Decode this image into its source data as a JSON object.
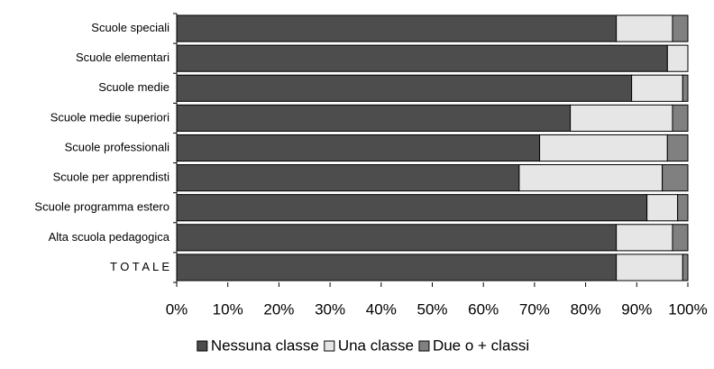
{
  "chart_data": {
    "type": "bar",
    "orientation": "horizontal",
    "stacked": true,
    "categories": [
      "Scuole speciali",
      "Scuole elementari",
      "Scuole medie",
      "Scuole medie superiori",
      "Scuole professionali",
      "Scuole per apprendisti",
      "Scuole programma estero",
      "Alta scuola pedagogica",
      "T O T A L E"
    ],
    "series": [
      {
        "name": "Nessuna classe",
        "color": "#4d4d4d",
        "values": [
          86,
          96,
          89,
          77,
          71,
          67,
          92,
          86,
          86
        ]
      },
      {
        "name": "Una classe",
        "color": "#e6e6e6",
        "values": [
          11,
          4,
          10,
          20,
          25,
          28,
          6,
          11,
          13
        ]
      },
      {
        "name": "Due o + classi",
        "color": "#808080",
        "values": [
          3,
          0,
          1,
          3,
          4,
          5,
          2,
          3,
          1
        ]
      }
    ],
    "xlim": [
      0,
      100
    ],
    "xticks": [
      {
        "value": 0,
        "label": "0%"
      },
      {
        "value": 10,
        "label": "10%"
      },
      {
        "value": 20,
        "label": "20%"
      },
      {
        "value": 30,
        "label": "30%"
      },
      {
        "value": 40,
        "label": "40%"
      },
      {
        "value": 50,
        "label": "50%"
      },
      {
        "value": 60,
        "label": "60%"
      },
      {
        "value": 70,
        "label": "70%"
      },
      {
        "value": 80,
        "label": "80%"
      },
      {
        "value": 90,
        "label": "90%"
      },
      {
        "value": 100,
        "label": "100%"
      }
    ],
    "grid": false,
    "legend": "bottom"
  }
}
